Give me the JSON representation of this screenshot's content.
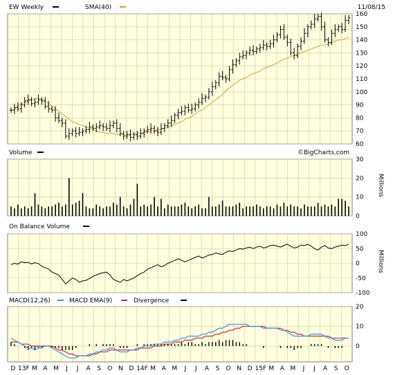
{
  "chart_data": {
    "type": "stock",
    "ticker_label": "EW Weekly",
    "date": "11/08/15",
    "watermark": "©BigCharts.com",
    "colors": {
      "panel_bg": "#ffffe0",
      "grid": "#c8c8a0",
      "price": "#000000",
      "sma": "#d4a040",
      "macd": "#3b8ee0",
      "ema": "#c03030",
      "volume": "#000000"
    },
    "price_panel": {
      "series": [
        {
          "name": "EW Weekly",
          "legend_color": "#000000"
        },
        {
          "name": "SMA(40)",
          "legend_color": "#d4a040"
        }
      ],
      "ylim": [
        60,
        160
      ],
      "yticks": [
        60,
        70,
        80,
        90,
        100,
        110,
        120,
        130,
        140,
        150,
        160
      ],
      "close": [
        86,
        88,
        87,
        90,
        93,
        94,
        91,
        92,
        94,
        93,
        89,
        87,
        86,
        80,
        78,
        76,
        66,
        68,
        70,
        68,
        69,
        70,
        71,
        73,
        72,
        73,
        74,
        73,
        72,
        74,
        76,
        72,
        68,
        66,
        67,
        65,
        67,
        66,
        68,
        70,
        71,
        72,
        70,
        69,
        72,
        74,
        76,
        78,
        82,
        84,
        85,
        88,
        86,
        87,
        90,
        92,
        95,
        96,
        100,
        104,
        107,
        112,
        111,
        110,
        117,
        121,
        124,
        127,
        128,
        130,
        132,
        131,
        133,
        134,
        136,
        135,
        137,
        140,
        144,
        148,
        142,
        138,
        130,
        128,
        135,
        139,
        145,
        150,
        152,
        156,
        158,
        150,
        140,
        138,
        145,
        148,
        150,
        148,
        155,
        157
      ],
      "sma": [
        85,
        87,
        89,
        91,
        92,
        93,
        94,
        95,
        95,
        94,
        93,
        91,
        89,
        87,
        85,
        83,
        81,
        79,
        77,
        76,
        75,
        74,
        73,
        72,
        71,
        70,
        69,
        69,
        68,
        68,
        68,
        67,
        67,
        67,
        67,
        67,
        68,
        68,
        68,
        69,
        69,
        70,
        70,
        71,
        71,
        72,
        73,
        74,
        75,
        76,
        77,
        79,
        80,
        81,
        83,
        85,
        86,
        88,
        90,
        92,
        94,
        96,
        98,
        101,
        103,
        105,
        107,
        109,
        110,
        111,
        113,
        114,
        115,
        116,
        118,
        119,
        120,
        121,
        122,
        124,
        125,
        126,
        127,
        128,
        129,
        130,
        131,
        132,
        133,
        134,
        135,
        136,
        136,
        137,
        138,
        139,
        140,
        140,
        141,
        142
      ]
    },
    "volume_panel": {
      "series": [
        {
          "name": "Volume",
          "legend_color": "#000000"
        }
      ],
      "ylabel": "Millions",
      "ylim": [
        0,
        30
      ],
      "yticks": [
        0,
        10,
        20,
        30
      ],
      "values": [
        5,
        4,
        6,
        4,
        5,
        4,
        5,
        12,
        6,
        5,
        4,
        5,
        5,
        6,
        7,
        5,
        6,
        20,
        6,
        7,
        8,
        12,
        5,
        4,
        4,
        6,
        5,
        4,
        5,
        5,
        7,
        6,
        10,
        5,
        4,
        6,
        9,
        17,
        5,
        6,
        5,
        6,
        10,
        5,
        9,
        4,
        6,
        5,
        5,
        5,
        6,
        7,
        5,
        4,
        5,
        6,
        4,
        4,
        10,
        5,
        5,
        6,
        8,
        5,
        5,
        5,
        6,
        7,
        4,
        5,
        5,
        5,
        6,
        5,
        4,
        5,
        5,
        4,
        6,
        5,
        7,
        5,
        6,
        5,
        5,
        4,
        6,
        5,
        5,
        5,
        7,
        5,
        6,
        5,
        6,
        5,
        9,
        9,
        8,
        5
      ]
    },
    "obv_panel": {
      "series": [
        {
          "name": "On Balance Volume",
          "legend_color": "#000000"
        }
      ],
      "ylabel": "Millions",
      "ylim": [
        -100,
        100
      ],
      "yticks": [
        -100,
        -50,
        0,
        50,
        100
      ],
      "values": [
        -5,
        0,
        -3,
        5,
        2,
        3,
        -2,
        2,
        -1,
        -10,
        -15,
        -20,
        -30,
        -35,
        -40,
        -55,
        -70,
        -60,
        -50,
        -55,
        -65,
        -60,
        -58,
        -52,
        -45,
        -40,
        -35,
        -32,
        -30,
        -40,
        -55,
        -60,
        -65,
        -55,
        -60,
        -55,
        -50,
        -42,
        -35,
        -30,
        -20,
        -15,
        -10,
        -5,
        -12,
        -8,
        0,
        5,
        10,
        15,
        10,
        5,
        10,
        15,
        20,
        25,
        18,
        22,
        28,
        30,
        35,
        32,
        30,
        38,
        42,
        40,
        45,
        50,
        48,
        52,
        55,
        50,
        55,
        58,
        52,
        55,
        60,
        62,
        58,
        55,
        60,
        65,
        58,
        52,
        55,
        62,
        60,
        65,
        58,
        50,
        45,
        55,
        60,
        52,
        50,
        55,
        58,
        62,
        60,
        65
      ]
    },
    "macd_panel": {
      "series": [
        {
          "name": "MACD(12,26)",
          "legend_color": "#3b8ee0"
        },
        {
          "name": "MACD EMA(9)",
          "legend_color": "#c03030"
        },
        {
          "name": "Divergence",
          "legend_color": "#000000"
        }
      ],
      "ylim": [
        -8,
        20
      ],
      "yticks": [
        0,
        10,
        20
      ],
      "macd": [
        4,
        3,
        2,
        1,
        0,
        -1,
        -1,
        -2,
        -1,
        -1,
        0,
        0,
        -1,
        -2,
        -3,
        -4,
        -5,
        -6,
        -6,
        -6,
        -5,
        -5,
        -5,
        -4,
        -4,
        -3,
        -3,
        -2,
        -2,
        -1,
        -1,
        -2,
        -3,
        -3,
        -3,
        -2,
        -2,
        -1,
        -1,
        0,
        0,
        0,
        1,
        1,
        1,
        2,
        2,
        2,
        3,
        3,
        4,
        4,
        5,
        5,
        5,
        5,
        6,
        6,
        7,
        7,
        8,
        9,
        9,
        10,
        11,
        11,
        11,
        11,
        11,
        11,
        10,
        10,
        10,
        10,
        9,
        9,
        9,
        9,
        9,
        8,
        8,
        7,
        6,
        5,
        5,
        5,
        5,
        5,
        6,
        6,
        6,
        6,
        5,
        4,
        4,
        3,
        3,
        3,
        4,
        4
      ],
      "ema": [
        2,
        2,
        2,
        1,
        1,
        1,
        0,
        0,
        0,
        0,
        0,
        0,
        0,
        -1,
        -2,
        -2,
        -3,
        -4,
        -4,
        -5,
        -5,
        -5,
        -5,
        -5,
        -4,
        -4,
        -3,
        -3,
        -3,
        -2,
        -2,
        -2,
        -2,
        -2,
        -2,
        -2,
        -2,
        -2,
        -1,
        -1,
        -1,
        -1,
        0,
        0,
        0,
        1,
        1,
        1,
        2,
        2,
        2,
        3,
        3,
        3,
        4,
        4,
        4,
        5,
        5,
        5,
        6,
        6,
        7,
        7,
        8,
        8,
        9,
        9,
        10,
        10,
        10,
        10,
        10,
        10,
        10,
        9,
        9,
        9,
        9,
        9,
        8,
        8,
        7,
        7,
        6,
        6,
        5,
        5,
        5,
        5,
        5,
        5,
        5,
        5,
        4,
        4,
        4,
        4,
        4,
        4
      ],
      "div": [
        2,
        1,
        0,
        0,
        -1,
        -2,
        -1,
        -2,
        -1,
        -1,
        0,
        0,
        -1,
        -1,
        -1,
        -2,
        -2,
        -2,
        -2,
        -1,
        0,
        0,
        0,
        1,
        0,
        1,
        0,
        1,
        1,
        1,
        1,
        0,
        -1,
        -1,
        -1,
        0,
        0,
        1,
        0,
        1,
        1,
        1,
        1,
        1,
        1,
        1,
        1,
        1,
        1,
        1,
        2,
        1,
        2,
        2,
        1,
        1,
        2,
        1,
        2,
        2,
        2,
        3,
        2,
        3,
        3,
        3,
        2,
        2,
        1,
        1,
        0,
        0,
        0,
        0,
        -1,
        0,
        0,
        0,
        0,
        -1,
        0,
        -1,
        -1,
        -2,
        -1,
        -1,
        0,
        0,
        1,
        1,
        1,
        1,
        0,
        -1,
        0,
        -1,
        -1,
        -1,
        0,
        0
      ]
    },
    "x_axis": {
      "tick_labels": [
        "D",
        "13F",
        "M",
        "A",
        "M",
        "J",
        "J",
        "A",
        "S",
        "O",
        "N",
        "D",
        "14F",
        "M",
        "A",
        "M",
        "J",
        "J",
        "A",
        "S",
        "O",
        "N",
        "D",
        "15F",
        "M",
        "A",
        "M",
        "J",
        "J",
        "A",
        "S",
        "O"
      ]
    }
  }
}
